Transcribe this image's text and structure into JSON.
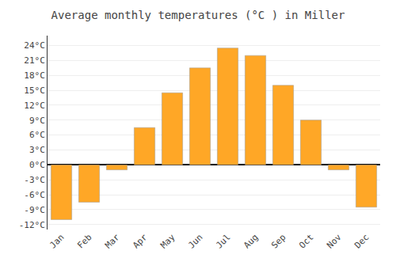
{
  "chart_data": {
    "type": "bar",
    "title": "Average monthly temperatures (°C ) in Miller",
    "categories": [
      "Jan",
      "Feb",
      "Mar",
      "Apr",
      "May",
      "Jun",
      "Jul",
      "Aug",
      "Sep",
      "Oct",
      "Nov",
      "Dec"
    ],
    "values": [
      -11,
      -7.5,
      -1,
      7.5,
      14.5,
      19.5,
      23.5,
      22,
      16,
      9,
      -1,
      -8.5
    ],
    "color": "#FFA726",
    "ylim": [
      -13,
      26
    ],
    "yticks": [
      {
        "value": -12,
        "label": "-12°C"
      },
      {
        "value": -9,
        "label": "-9°C"
      },
      {
        "value": -6,
        "label": "-6°C"
      },
      {
        "value": -3,
        "label": "-3°C"
      },
      {
        "value": 0,
        "label": "0°C"
      },
      {
        "value": 3,
        "label": "3°C"
      },
      {
        "value": 6,
        "label": "6°C"
      },
      {
        "value": 9,
        "label": "9°C"
      },
      {
        "value": 12,
        "label": "12°C"
      },
      {
        "value": 15,
        "label": "15°C"
      },
      {
        "value": 18,
        "label": "18°C"
      },
      {
        "value": 21,
        "label": "21°C"
      },
      {
        "value": 24,
        "label": "24°C"
      }
    ],
    "grid": true
  }
}
